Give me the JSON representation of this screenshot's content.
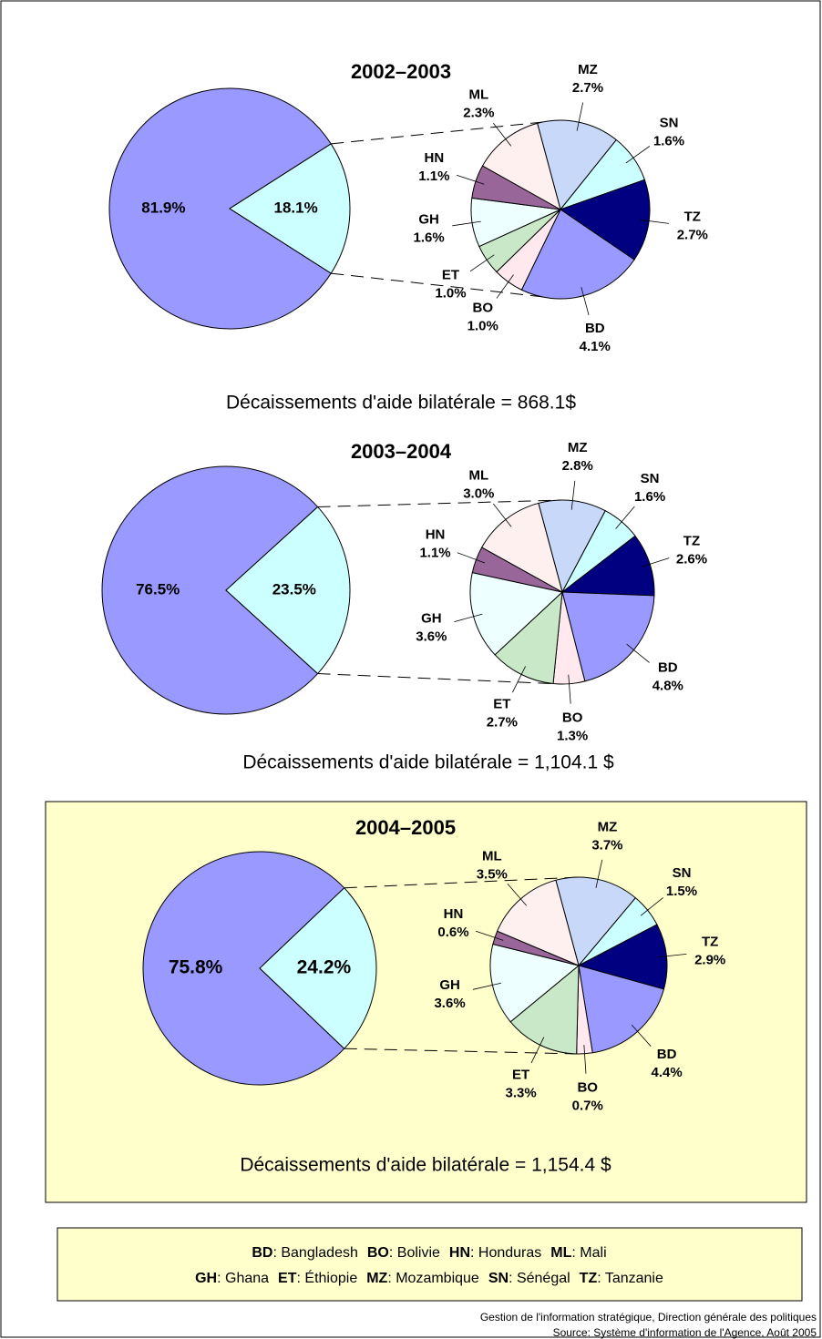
{
  "chart_data": [
    {
      "type": "pie_of_pie",
      "title": "2002–2003",
      "caption": "Décaissements d'aide bilatérale = 868.1$",
      "highlight": false,
      "main": {
        "values": [
          81.9,
          18.1
        ],
        "value_labels": [
          "81.9%",
          "18.1%"
        ],
        "colors": [
          "#9999ff",
          "#ccffff"
        ]
      },
      "detail": {
        "categories": [
          "MZ",
          "SN",
          "TZ",
          "BD",
          "BO",
          "ET",
          "GH",
          "HN",
          "ML"
        ],
        "values": [
          2.7,
          1.6,
          2.7,
          4.1,
          1.0,
          1.0,
          1.6,
          1.1,
          2.3
        ],
        "value_labels": [
          "2.7%",
          "1.6%",
          "2.7%",
          "4.1%",
          "1.0%",
          "1.0%",
          "1.6%",
          "1.1%",
          "2.3%"
        ],
        "colors": [
          "#c8d8f8",
          "#ccffff",
          "#000080",
          "#9999ff",
          "#ffe8ee",
          "#c8e8c8",
          "#eeffff",
          "#996699",
          "#fff0f0"
        ]
      }
    },
    {
      "type": "pie_of_pie",
      "title": "2003–2004",
      "caption": "Décaissements d'aide bilatérale = 1,104.1 $",
      "highlight": false,
      "main": {
        "values": [
          76.5,
          23.5
        ],
        "value_labels": [
          "76.5%",
          "23.5%"
        ],
        "colors": [
          "#9999ff",
          "#ccffff"
        ]
      },
      "detail": {
        "categories": [
          "MZ",
          "SN",
          "TZ",
          "BD",
          "BO",
          "ET",
          "GH",
          "HN",
          "ML"
        ],
        "values": [
          2.8,
          1.6,
          2.6,
          4.8,
          1.3,
          2.7,
          3.6,
          1.1,
          3.0
        ],
        "value_labels": [
          "2.8%",
          "1.6%",
          "2.6%",
          "4.8%",
          "1.3%",
          "2.7%",
          "3.6%",
          "1.1%",
          "3.0%"
        ],
        "colors": [
          "#c8d8f8",
          "#ccffff",
          "#000080",
          "#9999ff",
          "#ffe8ee",
          "#c8e8c8",
          "#eeffff",
          "#996699",
          "#fff0f0"
        ]
      }
    },
    {
      "type": "pie_of_pie",
      "title": "2004–2005",
      "caption": "Décaissements d'aide bilatérale = 1,154.4 $",
      "highlight": true,
      "main": {
        "values": [
          75.8,
          24.2
        ],
        "value_labels": [
          "75.8%",
          "24.2%"
        ],
        "colors": [
          "#9999ff",
          "#ccffff"
        ]
      },
      "detail": {
        "categories": [
          "MZ",
          "SN",
          "TZ",
          "BD",
          "BO",
          "ET",
          "GH",
          "HN",
          "ML"
        ],
        "values": [
          3.7,
          1.5,
          2.9,
          4.4,
          0.7,
          3.3,
          3.6,
          0.6,
          3.5
        ],
        "value_labels": [
          "3.7%",
          "1.5%",
          "2.9%",
          "4.4%",
          "0.7%",
          "3.3%",
          "3.6%",
          "0.6%",
          "3.5%"
        ],
        "colors": [
          "#c8d8f8",
          "#ccffff",
          "#000080",
          "#9999ff",
          "#ffe8ee",
          "#c8e8c8",
          "#eeffff",
          "#996699",
          "#fff0f0"
        ]
      }
    }
  ],
  "legend": {
    "rows": [
      [
        {
          "code": "BD",
          "text": ": Bangladesh"
        },
        {
          "code": "BO",
          "text": ": Bolivie"
        },
        {
          "code": "HN",
          "text": ": Honduras"
        },
        {
          "code": "ML",
          "text": ": Mali"
        }
      ],
      [
        {
          "code": "GH",
          "text": ": Ghana"
        },
        {
          "code": "ET",
          "text": ": Éthiopie"
        },
        {
          "code": "MZ",
          "text": ": Mozambique"
        },
        {
          "code": "SN",
          "text": ": Sénégal"
        },
        {
          "code": "TZ",
          "text": ": Tanzanie"
        }
      ]
    ]
  },
  "footer": [
    "Gestion de l'information stratégique, Direction générale des politiques",
    "Source: Système d'information de l'Agence, Août 2005"
  ]
}
